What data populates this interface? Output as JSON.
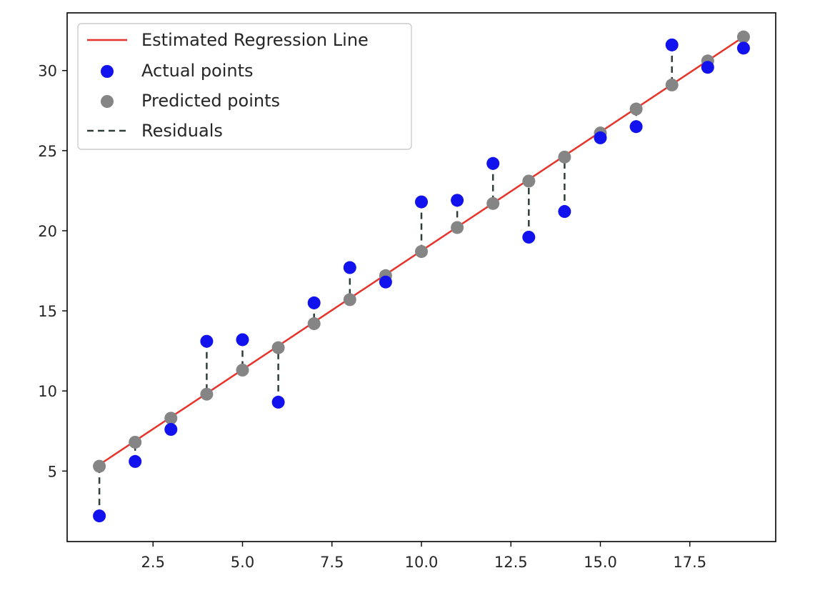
{
  "chart_data": {
    "type": "scatter",
    "title": "",
    "xlabel": "",
    "ylabel": "",
    "xlim": [
      0.1,
      19.9
    ],
    "ylim": [
      0.6,
      33.6
    ],
    "grid": false,
    "legend_placement": "top-left",
    "xticks": [
      2.5,
      5.0,
      7.5,
      10.0,
      12.5,
      15.0,
      17.5
    ],
    "xtick_labels": [
      "2.5",
      "5.0",
      "7.5",
      "10.0",
      "12.5",
      "15.0",
      "17.5"
    ],
    "yticks": [
      5,
      10,
      15,
      20,
      25,
      30
    ],
    "ytick_labels": [
      "5",
      "10",
      "15",
      "20",
      "25",
      "30"
    ],
    "x": [
      1,
      2,
      3,
      4,
      5,
      6,
      7,
      8,
      9,
      10,
      11,
      12,
      13,
      14,
      15,
      16,
      17,
      18,
      19
    ],
    "series": [
      {
        "name": "Estimated Regression Line",
        "kind": "line",
        "color": "#e8332a",
        "x": [
          1,
          19
        ],
        "y": [
          5.4,
          32.1
        ]
      },
      {
        "name": "Actual points",
        "kind": "scatter",
        "color": "#1212ee",
        "y": [
          2.2,
          5.6,
          7.6,
          13.1,
          13.2,
          9.3,
          15.5,
          17.7,
          16.8,
          21.8,
          21.9,
          24.2,
          19.6,
          21.2,
          25.8,
          26.5,
          31.6,
          30.2,
          31.4
        ]
      },
      {
        "name": "Predicted points",
        "kind": "scatter",
        "color": "#858585",
        "y": [
          5.3,
          6.8,
          8.3,
          9.8,
          11.3,
          12.7,
          14.2,
          15.7,
          17.2,
          18.7,
          20.2,
          21.7,
          23.1,
          24.6,
          26.1,
          27.6,
          29.1,
          30.6,
          32.1
        ]
      },
      {
        "name": "Residuals",
        "kind": "dashed-segments",
        "color": "#2f3f35"
      }
    ]
  }
}
